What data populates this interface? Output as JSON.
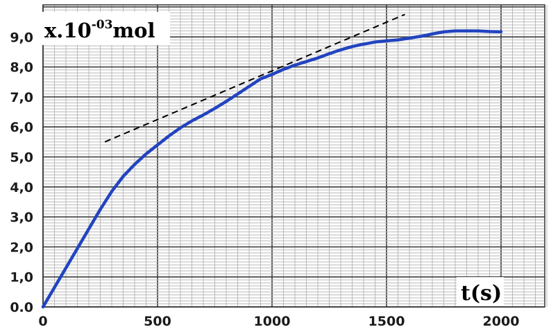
{
  "chart_data": {
    "type": "line",
    "title": "",
    "ylabel_base": "x.10",
    "ylabel_exponent": "-03",
    "ylabel_unit": "mol",
    "xlabel": "t(s)",
    "xlim": [
      0,
      2200
    ],
    "ylim": [
      0,
      9.6
    ],
    "grid": true,
    "x_ticks": [
      "0",
      "500",
      "1000",
      "1500",
      "2000"
    ],
    "y_ticks": [
      "0.0",
      "1,0",
      "2,0",
      "3,0",
      "4,0",
      "5,0",
      "6,0",
      "7,0",
      "8,0",
      "9,0"
    ],
    "series": [
      {
        "color": "#2244c0",
        "x": [
          0,
          50,
          100,
          150,
          200,
          250,
          300,
          350,
          400,
          450,
          500,
          550,
          600,
          650,
          700,
          750,
          800,
          850,
          900,
          950,
          1000,
          1050,
          1100,
          1150,
          1200,
          1250,
          1300,
          1350,
          1400,
          1450,
          1500,
          1550,
          1600,
          1650,
          1700,
          1750,
          1800,
          1850,
          1900,
          1950,
          2000
        ],
        "y": [
          0.0,
          0.65,
          1.3,
          1.95,
          2.6,
          3.25,
          3.85,
          4.35,
          4.75,
          5.1,
          5.4,
          5.7,
          5.97,
          6.2,
          6.4,
          6.62,
          6.85,
          7.1,
          7.35,
          7.6,
          7.75,
          7.92,
          8.06,
          8.18,
          8.3,
          8.44,
          8.57,
          8.68,
          8.76,
          8.83,
          8.87,
          8.9,
          8.96,
          9.02,
          9.1,
          9.17,
          9.2,
          9.2,
          9.2,
          9.18,
          9.17
        ]
      }
    ],
    "tangent_line": {
      "color": "#000000",
      "style": "dashed",
      "x": [
        270,
        1580
      ],
      "y": [
        5.5,
        9.75
      ]
    },
    "colors": {
      "grid_major": "#4a4a4a",
      "grid_minor": "#b8b8b8",
      "curve": "#2244c0"
    }
  }
}
